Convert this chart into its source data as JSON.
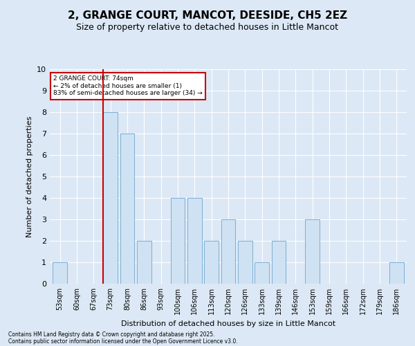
{
  "title": "2, GRANGE COURT, MANCOT, DEESIDE, CH5 2EZ",
  "subtitle": "Size of property relative to detached houses in Little Mancot",
  "xlabel": "Distribution of detached houses by size in Little Mancot",
  "ylabel": "Number of detached properties",
  "categories": [
    "53sqm",
    "60sqm",
    "67sqm",
    "73sqm",
    "80sqm",
    "86sqm",
    "93sqm",
    "100sqm",
    "106sqm",
    "113sqm",
    "120sqm",
    "126sqm",
    "133sqm",
    "139sqm",
    "146sqm",
    "153sqm",
    "159sqm",
    "166sqm",
    "172sqm",
    "179sqm",
    "186sqm"
  ],
  "values": [
    1,
    0,
    0,
    8,
    7,
    2,
    0,
    4,
    4,
    2,
    3,
    2,
    1,
    2,
    0,
    3,
    0,
    0,
    0,
    0,
    1
  ],
  "bar_color": "#cfe2f3",
  "bar_edge_color": "#7bafd4",
  "highlight_index": 3,
  "highlight_line_color": "#cc0000",
  "annotation_text": "2 GRANGE COURT: 74sqm\n← 2% of detached houses are smaller (1)\n83% of semi-detached houses are larger (34) →",
  "annotation_box_color": "#ffffff",
  "annotation_box_edge": "#cc0000",
  "ylim": [
    0,
    10
  ],
  "yticks": [
    0,
    1,
    2,
    3,
    4,
    5,
    6,
    7,
    8,
    9,
    10
  ],
  "footer1": "Contains HM Land Registry data © Crown copyright and database right 2025.",
  "footer2": "Contains public sector information licensed under the Open Government Licence v3.0.",
  "background_color": "#dce8f5",
  "plot_bg_color": "#dce8f5",
  "title_fontsize": 11,
  "subtitle_fontsize": 9,
  "tick_fontsize": 7,
  "ylabel_fontsize": 8,
  "xlabel_fontsize": 8,
  "footer_fontsize": 5.5
}
